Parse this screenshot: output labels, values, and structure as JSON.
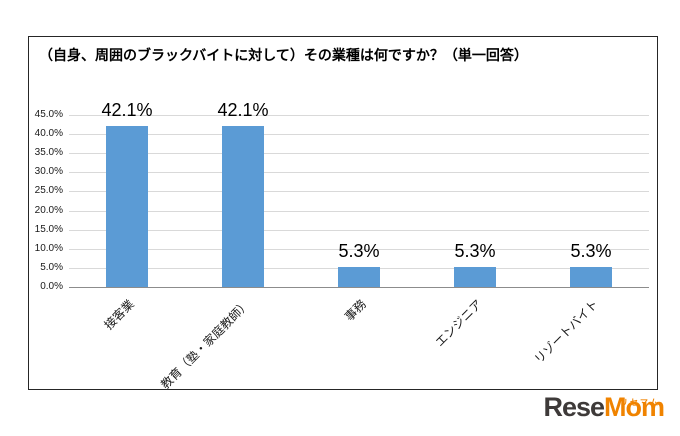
{
  "chart_data": {
    "type": "bar",
    "title": "（自身、周囲のブラックバイトに対して）その業種は何ですか？（単一回答）",
    "categories": [
      "接客業",
      "教育（塾・家庭教師）",
      "事務",
      "エンジニア",
      "リゾートバイト"
    ],
    "values": [
      42.1,
      42.1,
      5.3,
      5.3,
      5.3
    ],
    "data_labels": [
      "42.1%",
      "42.1%",
      "5.3%",
      "5.3%",
      "5.3%"
    ],
    "ylim": [
      0,
      45
    ],
    "ytick_labels": [
      "0.0%",
      "5.0%",
      "10.0%",
      "15.0%",
      "20.0%",
      "25.0%",
      "30.0%",
      "35.0%",
      "40.0%",
      "45.0%"
    ],
    "grid": true,
    "legend": false,
    "bar_color": "#5B9BD5",
    "xlabel": "",
    "ylabel": ""
  },
  "logo": {
    "katakana": "リセマム",
    "text_left": "Rese",
    "text_right": "Mom",
    "color_left": "#3e3a39",
    "color_right": "#f08300"
  }
}
